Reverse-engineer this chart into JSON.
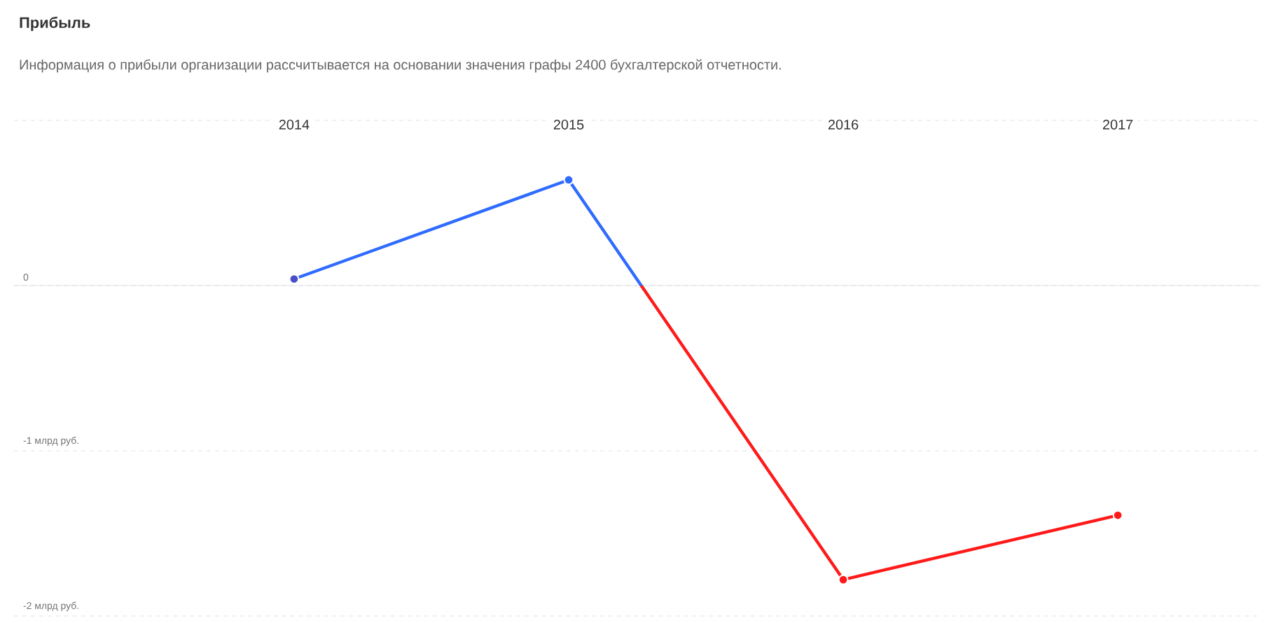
{
  "chart_data": {
    "type": "line",
    "title": "Прибыль",
    "subtitle": "Информация о прибыли организации рассчитывается на основании значения графы 2400 бухгалтерской отчетности.",
    "categories": [
      "2014",
      "2015",
      "2016",
      "2017"
    ],
    "series": [
      {
        "color": "#2f6bff",
        "colors": [
          "#4a4fc7",
          "#2f6bff",
          "#ff1a1a",
          "#ff1a1a"
        ],
        "values": [
          0.04,
          0.64,
          -1.78,
          -1.39
        ]
      }
    ],
    "ylim": [
      -2,
      1
    ],
    "yticks": [
      {
        "value": 1,
        "label": null
      },
      0,
      {
        "value": -1,
        "label": "-1 млрд руб."
      },
      {
        "value": -2,
        "label": "-2 млрд руб."
      }
    ],
    "ref_lines": [
      {
        "axis": "y",
        "value": 0,
        "color": "#e0e0e0",
        "line_style": "solid"
      }
    ],
    "grid": "y",
    "marker": "circle",
    "line_style": "solid"
  }
}
